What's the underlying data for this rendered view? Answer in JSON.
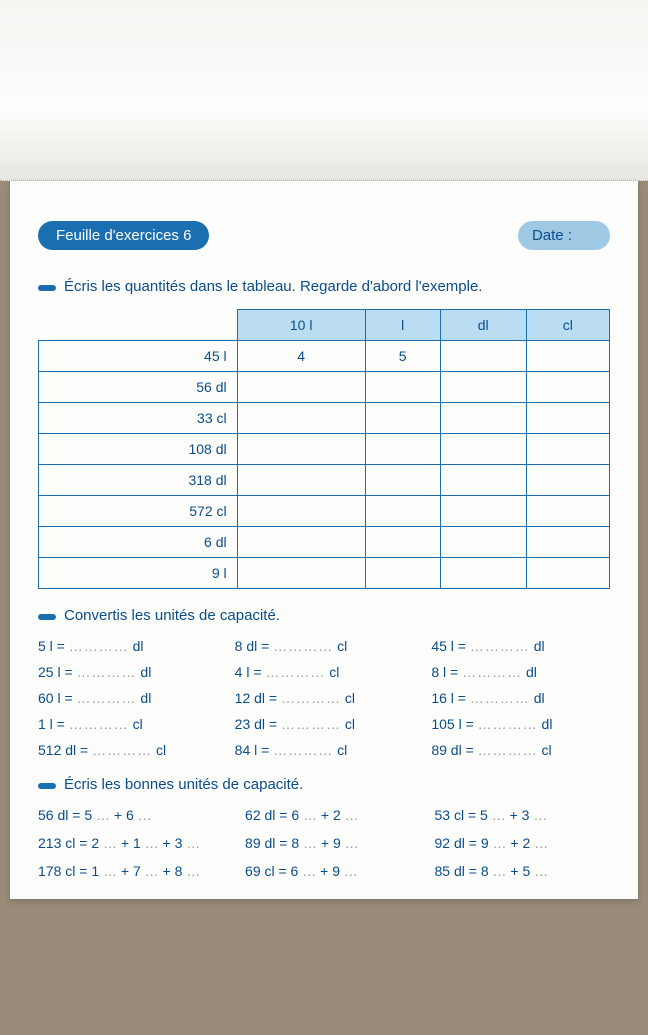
{
  "colors": {
    "primary": "#1a6fb0",
    "text": "#0a4d8c",
    "header_bg": "#baddf1",
    "date_bg": "#9fc8e4",
    "page_bg": "#fdfdfb",
    "outer_bg": "#9a8b78"
  },
  "header": {
    "title": "Feuille d'exercices 6",
    "date_label": "Date :"
  },
  "ex1": {
    "instruction": "Écris les quantités dans le tableau. Regarde d'abord l'exemple.",
    "columns": [
      "10 l",
      "l",
      "dl",
      "cl"
    ],
    "rows": [
      {
        "label": "45 l",
        "cells": [
          "4",
          "5",
          "",
          ""
        ]
      },
      {
        "label": "56 dl",
        "cells": [
          "",
          "",
          "",
          ""
        ]
      },
      {
        "label": "33 cl",
        "cells": [
          "",
          "",
          "",
          ""
        ]
      },
      {
        "label": "108 dl",
        "cells": [
          "",
          "",
          "",
          ""
        ]
      },
      {
        "label": "318 dl",
        "cells": [
          "",
          "",
          "",
          ""
        ]
      },
      {
        "label": "572 cl",
        "cells": [
          "",
          "",
          "",
          ""
        ]
      },
      {
        "label": "6 dl",
        "cells": [
          "",
          "",
          "",
          ""
        ]
      },
      {
        "label": "9 l",
        "cells": [
          "",
          "",
          "",
          ""
        ]
      }
    ]
  },
  "ex2": {
    "instruction": "Convertis les unités de capacité.",
    "items": [
      [
        {
          "lhs": "5 l =",
          "unit": "dl"
        },
        {
          "lhs": "8 dl =",
          "unit": "cl"
        },
        {
          "lhs": "45 l =",
          "unit": "dl"
        }
      ],
      [
        {
          "lhs": "25 l =",
          "unit": "dl"
        },
        {
          "lhs": "4 l =",
          "unit": "cl"
        },
        {
          "lhs": "8 l =",
          "unit": "dl"
        }
      ],
      [
        {
          "lhs": "60 l =",
          "unit": "dl"
        },
        {
          "lhs": "12 dl =",
          "unit": "cl"
        },
        {
          "lhs": "16 l =",
          "unit": "dl"
        }
      ],
      [
        {
          "lhs": "1 l =",
          "unit": "cl"
        },
        {
          "lhs": "23 dl =",
          "unit": "cl"
        },
        {
          "lhs": "105 l =",
          "unit": "dl"
        }
      ],
      [
        {
          "lhs": "512 dl =",
          "unit": "cl"
        },
        {
          "lhs": "84 l =",
          "unit": "cl"
        },
        {
          "lhs": "89 dl =",
          "unit": "cl"
        }
      ]
    ]
  },
  "ex3": {
    "instruction": "Écris les bonnes unités de capacité.",
    "rows": [
      [
        {
          "t": "56 dl = 5 … + 6 …"
        },
        {
          "t": "62 dl = 6 … + 2 …"
        },
        {
          "t": "53 cl = 5 … + 3 …"
        }
      ],
      [
        {
          "t": "213 cl = 2 … + 1 … + 3 …"
        },
        {
          "t": "89 dl = 8 … + 9 …"
        },
        {
          "t": "92 dl = 9 … + 2 …"
        }
      ],
      [
        {
          "t": "178 cl = 1 … + 7 … + 8 …"
        },
        {
          "t": "69 cl = 6 … + 9 …"
        },
        {
          "t": "85 dl = 8 … + 5 …"
        }
      ]
    ]
  }
}
